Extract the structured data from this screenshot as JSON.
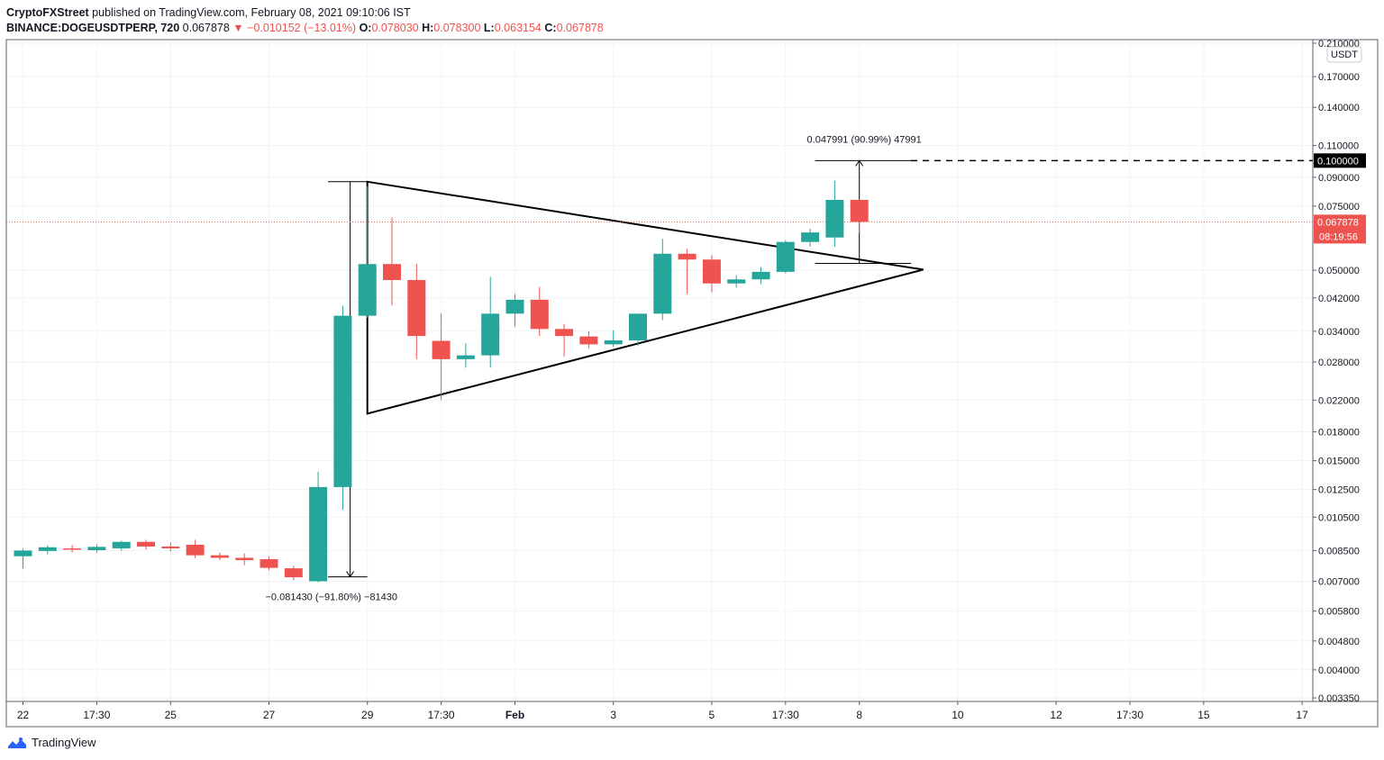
{
  "header": {
    "publisher": "CryptoFXStreet",
    "published_text": "published on TradingView.com, February 08, 2021 09:10:06 IST",
    "symbol": "BINANCE:DOGEUSDTPERP, 720",
    "last": "0.067878",
    "change_arrow": "▼",
    "change": "−0.010152 (−13.01%)",
    "o_label": "O:",
    "o_value": "0.078030",
    "h_label": "H:",
    "h_value": "0.078300",
    "l_label": "L:",
    "l_value": "0.063154",
    "c_label": "C:",
    "c_value": "0.067878"
  },
  "footer": {
    "brand": "TradingView"
  },
  "colors": {
    "up": "#26a69a",
    "down": "#ef5350",
    "price_line": "#ef5350",
    "text": "#131722"
  },
  "chart_data": {
    "type": "candlestick",
    "y_scale": "log",
    "currency_label": "USDT",
    "ylim": [
      0.00335,
      0.21
    ],
    "y_ticks": [
      "0.210000",
      "0.170000",
      "0.140000",
      "0.110000",
      "0.090000",
      "0.075000",
      "0.050000",
      "0.042000",
      "0.034000",
      "0.028000",
      "0.022000",
      "0.018000",
      "0.015000",
      "0.012500",
      "0.010500",
      "0.008500",
      "0.007000",
      "0.005800",
      "0.004800",
      "0.004000",
      "0.003350"
    ],
    "x_ticks": [
      "22",
      "17:30",
      "25",
      "27",
      "29",
      "17:30",
      "Feb",
      "3",
      "5",
      "17:30",
      "8",
      "10",
      "12",
      "17:30",
      "15",
      "17"
    ],
    "candles": [
      {
        "o": 0.0082,
        "h": 0.0086,
        "l": 0.0076,
        "c": 0.0085
      },
      {
        "o": 0.00848,
        "h": 0.00878,
        "l": 0.0083,
        "c": 0.00868
      },
      {
        "o": 0.00862,
        "h": 0.0088,
        "l": 0.0084,
        "c": 0.00856
      },
      {
        "o": 0.00852,
        "h": 0.00885,
        "l": 0.00838,
        "c": 0.0087
      },
      {
        "o": 0.00862,
        "h": 0.00905,
        "l": 0.0085,
        "c": 0.00898
      },
      {
        "o": 0.00898,
        "h": 0.0091,
        "l": 0.00855,
        "c": 0.00872
      },
      {
        "o": 0.00872,
        "h": 0.00895,
        "l": 0.00845,
        "c": 0.00862
      },
      {
        "o": 0.00882,
        "h": 0.0091,
        "l": 0.0081,
        "c": 0.00825
      },
      {
        "o": 0.00825,
        "h": 0.0084,
        "l": 0.008,
        "c": 0.00812
      },
      {
        "o": 0.00812,
        "h": 0.00835,
        "l": 0.00775,
        "c": 0.008
      },
      {
        "o": 0.00805,
        "h": 0.0082,
        "l": 0.0075,
        "c": 0.00762
      },
      {
        "o": 0.0076,
        "h": 0.00772,
        "l": 0.00705,
        "c": 0.00718
      },
      {
        "o": 0.007,
        "h": 0.014,
        "l": 0.00695,
        "c": 0.0127
      },
      {
        "o": 0.0127,
        "h": 0.04,
        "l": 0.011,
        "c": 0.0375
      },
      {
        "o": 0.0375,
        "h": 0.085,
        "l": 0.037,
        "c": 0.052
      },
      {
        "o": 0.052,
        "h": 0.0698,
        "l": 0.04,
        "c": 0.047
      },
      {
        "o": 0.047,
        "h": 0.052,
        "l": 0.0285,
        "c": 0.033
      },
      {
        "o": 0.032,
        "h": 0.038,
        "l": 0.022,
        "c": 0.0285
      },
      {
        "o": 0.0285,
        "h": 0.0315,
        "l": 0.027,
        "c": 0.0292
      },
      {
        "o": 0.0292,
        "h": 0.048,
        "l": 0.027,
        "c": 0.038
      },
      {
        "o": 0.038,
        "h": 0.043,
        "l": 0.035,
        "c": 0.0415
      },
      {
        "o": 0.0415,
        "h": 0.045,
        "l": 0.033,
        "c": 0.0345
      },
      {
        "o": 0.0345,
        "h": 0.0356,
        "l": 0.029,
        "c": 0.033
      },
      {
        "o": 0.0329,
        "h": 0.034,
        "l": 0.0305,
        "c": 0.0313
      },
      {
        "o": 0.0313,
        "h": 0.0342,
        "l": 0.0308,
        "c": 0.0321
      },
      {
        "o": 0.0321,
        "h": 0.038,
        "l": 0.031,
        "c": 0.038
      },
      {
        "o": 0.038,
        "h": 0.061,
        "l": 0.0365,
        "c": 0.0555
      },
      {
        "o": 0.0555,
        "h": 0.0572,
        "l": 0.043,
        "c": 0.0535
      },
      {
        "o": 0.0535,
        "h": 0.055,
        "l": 0.0435,
        "c": 0.046
      },
      {
        "o": 0.046,
        "h": 0.0485,
        "l": 0.0448,
        "c": 0.0472
      },
      {
        "o": 0.0472,
        "h": 0.051,
        "l": 0.0458,
        "c": 0.0495
      },
      {
        "o": 0.0495,
        "h": 0.0605,
        "l": 0.049,
        "c": 0.0598
      },
      {
        "o": 0.0598,
        "h": 0.065,
        "l": 0.058,
        "c": 0.0635
      },
      {
        "o": 0.0615,
        "h": 0.088,
        "l": 0.058,
        "c": 0.078
      },
      {
        "o": 0.07803,
        "h": 0.0783,
        "l": 0.06315,
        "c": 0.06788
      }
    ],
    "last_price": "0.067878",
    "countdown": "08:19:56",
    "level_line": "0.100000",
    "annotations": {
      "measure_up": "0.047991 (90.99%) 47991",
      "measure_down": "−0.081430 (−91.80%) −81430"
    }
  }
}
